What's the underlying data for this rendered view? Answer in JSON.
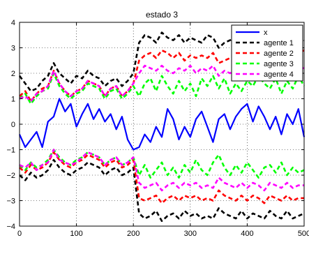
{
  "chart_data": {
    "type": "line",
    "title": "estado 3",
    "xlabel": "",
    "ylabel": "",
    "xlim": [
      0,
      500
    ],
    "ylim": [
      -4,
      4
    ],
    "xticks": [
      0,
      100,
      200,
      300,
      400,
      500
    ],
    "xtick_labels": [
      "0",
      "100",
      "200",
      "300",
      "400",
      "500"
    ],
    "yticks": [
      -4,
      -3,
      -2,
      -1,
      0,
      1,
      2,
      3,
      4
    ],
    "ytick_labels": [
      "−4",
      "−3",
      "−2",
      "−1",
      "0",
      "1",
      "2",
      "3",
      "4"
    ],
    "grid": true,
    "legend_position": "top-right",
    "x": [
      0,
      10,
      20,
      30,
      40,
      50,
      60,
      70,
      80,
      90,
      100,
      110,
      120,
      130,
      140,
      150,
      160,
      170,
      180,
      190,
      200,
      210,
      220,
      230,
      240,
      250,
      260,
      270,
      280,
      290,
      300,
      310,
      320,
      330,
      340,
      350,
      360,
      370,
      380,
      390,
      400,
      410,
      420,
      430,
      440,
      450,
      460,
      470,
      480,
      490,
      500
    ],
    "series": [
      {
        "name": "x",
        "color": "#0000ff",
        "style": "solid",
        "values": [
          -0.4,
          -0.9,
          -0.6,
          -0.3,
          -0.9,
          0.1,
          0.3,
          1.0,
          0.5,
          0.8,
          -0.1,
          0.4,
          0.8,
          0.2,
          0.6,
          0.1,
          0.4,
          -0.2,
          0.3,
          -0.6,
          -1.0,
          -0.9,
          -0.4,
          -0.7,
          -0.1,
          -0.5,
          0.6,
          0.2,
          -0.6,
          -0.1,
          -0.5,
          0.2,
          0.5,
          -0.1,
          -0.7,
          0.2,
          0.4,
          -0.2,
          0.3,
          0.6,
          0.8,
          0.1,
          0.7,
          0.3,
          -0.2,
          0.3,
          -0.4,
          0.4,
          0.0,
          0.6,
          -0.5
        ]
      },
      {
        "name": "agente 1",
        "color": "#000000",
        "style": "dashed",
        "values": [
          1.9,
          1.6,
          1.3,
          1.4,
          1.7,
          1.9,
          2.4,
          2.0,
          1.8,
          1.6,
          1.9,
          1.8,
          2.1,
          1.9,
          1.8,
          1.5,
          1.7,
          1.8,
          1.5,
          1.7,
          2.0,
          3.2,
          3.5,
          3.4,
          3.2,
          3.6,
          3.4,
          3.3,
          3.5,
          3.2,
          3.4,
          3.3,
          3.2,
          3.5,
          3.4,
          3.0,
          3.2,
          3.3,
          3.4,
          3.2,
          3.5,
          3.2,
          3.4,
          3.5,
          3.1,
          3.3,
          3.4,
          3.2,
          3.5,
          3.4,
          3.3
        ]
      },
      {
        "name": "agente 2",
        "color": "#ff0000",
        "style": "dashed",
        "values": [
          1.1,
          1.3,
          0.9,
          1.2,
          1.4,
          1.5,
          2.1,
          1.6,
          1.3,
          1.1,
          1.3,
          1.4,
          1.7,
          1.6,
          1.5,
          1.1,
          1.4,
          1.5,
          1.1,
          1.3,
          1.6,
          2.5,
          2.7,
          2.8,
          2.6,
          2.9,
          2.8,
          2.6,
          2.8,
          2.5,
          2.7,
          2.6,
          2.7,
          2.6,
          2.8,
          2.4,
          2.5,
          2.6,
          2.7,
          2.5,
          2.8,
          2.6,
          2.7,
          2.9,
          2.6,
          2.7,
          2.8,
          2.6,
          2.9,
          2.8,
          2.9
        ]
      },
      {
        "name": "agente 3",
        "color": "#00ff00",
        "style": "dashed",
        "values": [
          1.0,
          1.2,
          0.8,
          1.1,
          1.3,
          1.4,
          2.0,
          1.5,
          1.2,
          1.0,
          1.2,
          1.3,
          1.6,
          1.5,
          1.4,
          1.0,
          1.3,
          1.4,
          1.0,
          1.2,
          1.5,
          1.1,
          1.6,
          1.8,
          1.3,
          1.9,
          1.5,
          1.2,
          1.7,
          1.3,
          1.6,
          1.1,
          1.8,
          1.5,
          1.9,
          1.4,
          1.8,
          1.2,
          1.6,
          1.3,
          1.7,
          1.5,
          1.9,
          1.6,
          1.4,
          1.8,
          1.2,
          1.7,
          1.4,
          1.9,
          1.5
        ]
      },
      {
        "name": "agente 4",
        "color": "#ff00ff",
        "style": "dashed",
        "values": [
          1.0,
          1.1,
          0.9,
          1.2,
          1.3,
          1.5,
          2.1,
          1.6,
          1.3,
          1.1,
          1.3,
          1.4,
          1.7,
          1.6,
          1.5,
          1.1,
          1.4,
          1.5,
          1.1,
          1.3,
          1.6,
          2.0,
          2.3,
          2.2,
          2.1,
          2.3,
          2.1,
          2.0,
          2.2,
          2.1,
          2.3,
          2.0,
          2.2,
          2.1,
          2.3,
          1.9,
          2.1,
          2.0,
          2.2,
          2.1,
          2.3,
          2.1,
          2.2,
          2.4,
          2.1,
          2.2,
          2.3,
          2.1,
          2.3,
          2.2,
          2.2
        ]
      },
      {
        "name": "agente 1",
        "color": "#000000",
        "style": "dashed",
        "values": [
          -2.0,
          -2.2,
          -1.9,
          -2.1,
          -2.0,
          -1.8,
          -1.4,
          -1.7,
          -1.9,
          -2.0,
          -1.8,
          -1.7,
          -1.5,
          -1.6,
          -1.7,
          -2.0,
          -1.8,
          -1.7,
          -2.0,
          -1.9,
          -1.7,
          -3.5,
          -3.7,
          -3.6,
          -3.4,
          -3.8,
          -3.6,
          -3.5,
          -3.7,
          -3.4,
          -3.6,
          -3.5,
          -3.7,
          -3.6,
          -3.7,
          -3.3,
          -3.5,
          -3.6,
          -3.7,
          -3.4,
          -3.7,
          -3.5,
          -3.6,
          -3.7,
          -3.4,
          -3.6,
          -3.7,
          -3.4,
          -3.7,
          -3.6,
          -3.5
        ]
      },
      {
        "name": "agente 2",
        "color": "#ff0000",
        "style": "dashed",
        "values": [
          -1.7,
          -1.9,
          -1.6,
          -1.8,
          -1.7,
          -1.5,
          -1.1,
          -1.4,
          -1.6,
          -1.7,
          -1.5,
          -1.4,
          -1.2,
          -1.3,
          -1.4,
          -1.7,
          -1.5,
          -1.4,
          -1.7,
          -1.6,
          -1.4,
          -2.9,
          -3.0,
          -2.9,
          -2.8,
          -3.1,
          -2.9,
          -2.8,
          -3.0,
          -2.8,
          -2.9,
          -2.8,
          -3.0,
          -2.9,
          -3.0,
          -2.6,
          -2.8,
          -2.9,
          -3.0,
          -2.8,
          -3.0,
          -2.8,
          -2.9,
          -3.1,
          -2.8,
          -2.9,
          -3.0,
          -2.8,
          -3.0,
          -2.9,
          -2.9
        ]
      },
      {
        "name": "agente 3",
        "color": "#00ff00",
        "style": "dashed",
        "values": [
          -1.6,
          -1.8,
          -1.5,
          -1.7,
          -1.6,
          -1.4,
          -1.0,
          -1.3,
          -1.5,
          -1.6,
          -1.4,
          -1.3,
          -1.1,
          -1.2,
          -1.3,
          -1.6,
          -1.4,
          -1.3,
          -1.6,
          -1.5,
          -1.3,
          -2.0,
          -1.6,
          -2.1,
          -1.8,
          -1.5,
          -2.0,
          -1.7,
          -2.1,
          -1.6,
          -1.9,
          -1.4,
          -1.8,
          -2.0,
          -1.5,
          -1.2,
          -1.7,
          -2.0,
          -1.6,
          -1.9,
          -1.5,
          -1.8,
          -2.1,
          -1.7,
          -1.6,
          -1.9,
          -1.5,
          -2.0,
          -1.7,
          -1.9,
          -1.8
        ]
      },
      {
        "name": "agente 4",
        "color": "#ff00ff",
        "style": "dashed",
        "values": [
          -1.6,
          -1.7,
          -1.5,
          -1.8,
          -1.6,
          -1.5,
          -1.0,
          -1.4,
          -1.5,
          -1.6,
          -1.5,
          -1.3,
          -1.1,
          -1.2,
          -1.3,
          -1.6,
          -1.4,
          -1.3,
          -1.6,
          -1.5,
          -1.3,
          -2.3,
          -2.5,
          -2.4,
          -2.3,
          -2.6,
          -2.4,
          -2.3,
          -2.5,
          -2.3,
          -2.4,
          -2.3,
          -2.5,
          -2.4,
          -2.5,
          -2.1,
          -2.3,
          -2.4,
          -2.5,
          -2.3,
          -2.5,
          -2.3,
          -2.4,
          -2.6,
          -2.3,
          -2.4,
          -2.5,
          -2.3,
          -2.5,
          -2.4,
          -2.4
        ]
      }
    ]
  }
}
